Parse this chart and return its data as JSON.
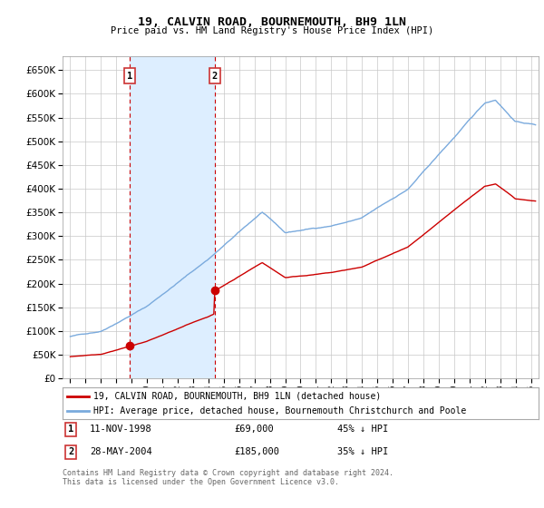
{
  "title": "19, CALVIN ROAD, BOURNEMOUTH, BH9 1LN",
  "subtitle": "Price paid vs. HM Land Registry's House Price Index (HPI)",
  "ylabel_ticks": [
    0,
    50000,
    100000,
    150000,
    200000,
    250000,
    300000,
    350000,
    400000,
    450000,
    500000,
    550000,
    600000,
    650000
  ],
  "ylim": [
    0,
    680000
  ],
  "xlim_start": 1994.5,
  "xlim_end": 2025.5,
  "transaction1": {
    "date": "11-NOV-1998",
    "price": 69000,
    "label": "1",
    "x": 1998.87,
    "pct": "45% ↓ HPI"
  },
  "transaction2": {
    "date": "28-MAY-2004",
    "price": 185000,
    "label": "2",
    "x": 2004.41,
    "pct": "35% ↓ HPI"
  },
  "legend_line1": "19, CALVIN ROAD, BOURNEMOUTH, BH9 1LN (detached house)",
  "legend_line2": "HPI: Average price, detached house, Bournemouth Christchurch and Poole",
  "footer1": "Contains HM Land Registry data © Crown copyright and database right 2024.",
  "footer2": "This data is licensed under the Open Government Licence v3.0.",
  "background_color": "#ffffff",
  "grid_color": "#c8c8c8",
  "red_line_color": "#cc0000",
  "blue_line_color": "#7aaadd",
  "dashed_line_color": "#cc0000",
  "box_color": "#cc3333",
  "span_color": "#ddeeff"
}
